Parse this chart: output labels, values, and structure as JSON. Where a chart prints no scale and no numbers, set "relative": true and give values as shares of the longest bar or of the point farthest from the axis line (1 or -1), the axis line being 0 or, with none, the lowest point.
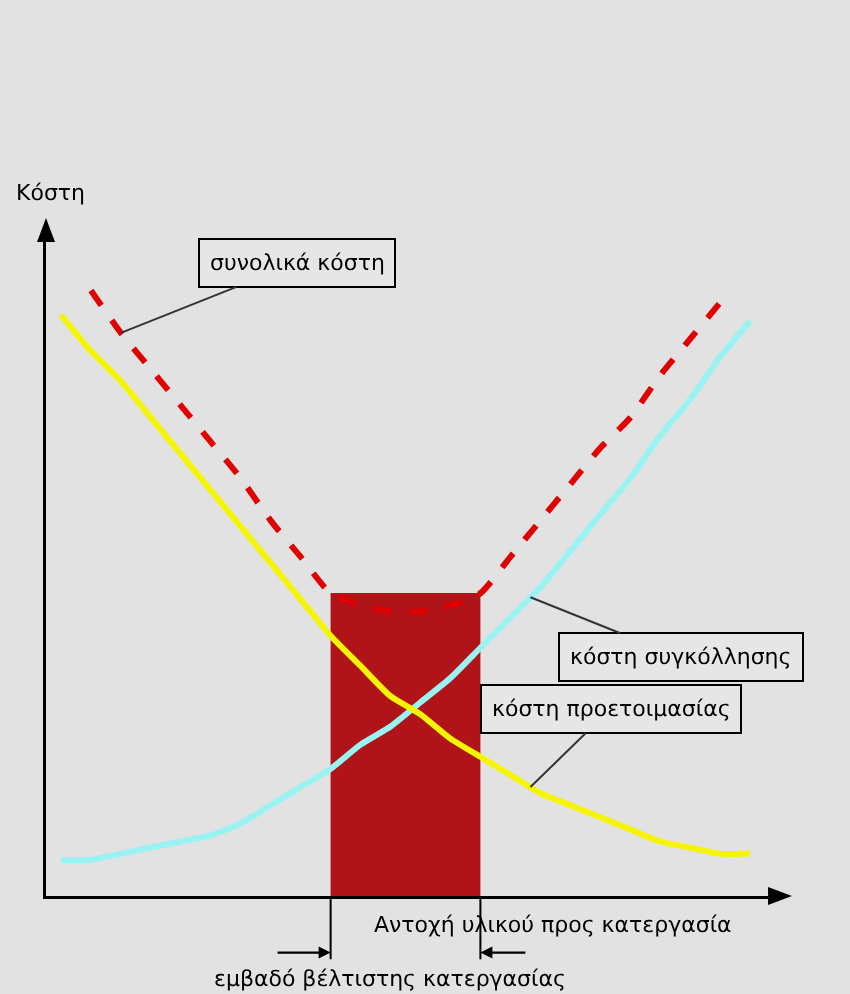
{
  "chart_data": {
    "type": "line",
    "relative": true,
    "xlabel": "Αντοχή υλικού προς κατεργασία",
    "ylabel": "Κόστη",
    "categories": [
      null,
      null,
      null,
      null,
      null,
      null,
      null,
      null,
      null,
      null,
      null,
      null,
      null,
      null,
      null,
      null,
      null,
      null,
      null,
      null,
      null,
      null,
      null,
      null
    ],
    "series": [
      {
        "name": "συνολικά κόστη",
        "color": "#e00000",
        "line_style": "dashed",
        "values": [
          null,
          1.0,
          0.93,
          0.87,
          0.81,
          0.75,
          0.69,
          0.62,
          0.56,
          0.5,
          0.48,
          0.47,
          0.47,
          0.48,
          0.5,
          0.56,
          0.62,
          0.68,
          0.74,
          0.79,
          0.86,
          0.92,
          0.98,
          null
        ]
      },
      {
        "name": "κόστη συγκόλλησης",
        "color": "#99f3f3",
        "line_style": "solid",
        "values": [
          0.06,
          0.06,
          0.07,
          0.08,
          0.09,
          0.1,
          0.12,
          0.15,
          0.18,
          0.21,
          0.25,
          0.28,
          0.32,
          0.36,
          0.41,
          0.46,
          0.51,
          0.57,
          0.63,
          0.69,
          0.76,
          0.82,
          0.89,
          0.95
        ]
      },
      {
        "name": "κόστη προετοιμασίας",
        "color": "#f5f500",
        "line_style": "solid",
        "values": [
          0.96,
          0.9,
          0.85,
          0.79,
          0.73,
          0.67,
          0.61,
          0.55,
          0.49,
          0.43,
          0.38,
          0.33,
          0.3,
          0.26,
          0.23,
          0.2,
          0.17,
          0.15,
          0.13,
          0.11,
          0.09,
          0.08,
          0.07,
          0.07
        ]
      }
    ],
    "annotations": [
      "εμβαδό βέλτιστης κατεργασίας"
    ]
  }
}
